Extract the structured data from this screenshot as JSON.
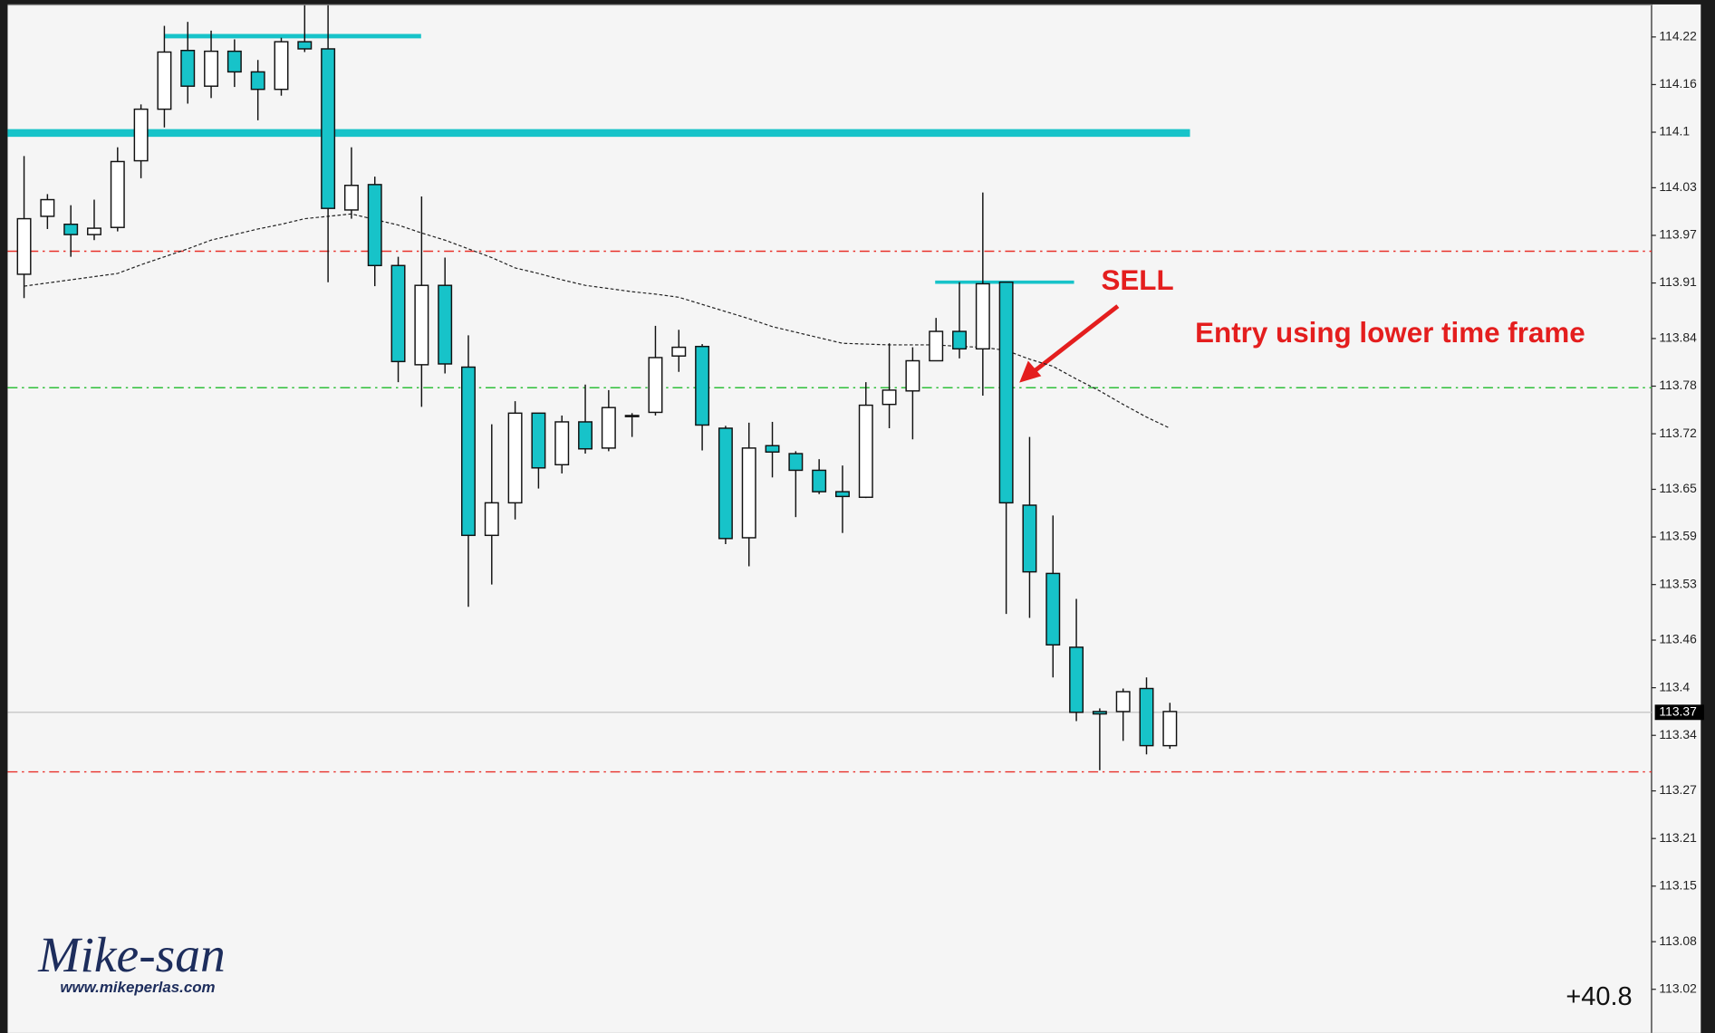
{
  "chart_data": {
    "type": "candlestick",
    "up_color": "#ffffff",
    "down_color": "#17c3c9",
    "ma_color": "#222222",
    "ylim": [
      112.965,
      114.261
    ],
    "yticks": [
      114.22,
      114.16,
      114.1,
      114.03,
      113.97,
      113.91,
      113.84,
      113.78,
      113.72,
      113.65,
      113.59,
      113.53,
      113.46,
      113.4,
      113.34,
      113.27,
      113.21,
      113.15,
      113.08,
      113.02
    ],
    "open": [
      113.921,
      113.994,
      113.984,
      113.971,
      113.98,
      114.064,
      114.129,
      114.203,
      114.158,
      114.202,
      114.176,
      114.154,
      114.214,
      114.205,
      114.002,
      114.034,
      113.932,
      113.807,
      113.907,
      113.804,
      113.592,
      113.633,
      113.746,
      113.681,
      113.735,
      113.702,
      113.742,
      113.747,
      113.818,
      113.83,
      113.727,
      113.589,
      113.705,
      113.695,
      113.674,
      113.647,
      113.64,
      113.757,
      113.774,
      113.812,
      113.849,
      113.827,
      113.911,
      113.63,
      113.544,
      113.451,
      113.37,
      113.37,
      113.399,
      113.327
    ],
    "high": [
      114.07,
      114.022,
      114.008,
      114.015,
      114.081,
      114.135,
      114.234,
      114.239,
      114.228,
      114.217,
      114.191,
      114.219,
      114.26,
      114.26,
      114.081,
      114.044,
      113.943,
      114.019,
      113.942,
      113.844,
      113.732,
      113.761,
      113.746,
      113.743,
      113.782,
      113.775,
      113.746,
      113.856,
      113.851,
      113.833,
      113.73,
      113.734,
      113.735,
      113.698,
      113.688,
      113.68,
      113.785,
      113.834,
      113.829,
      113.866,
      113.911,
      114.024,
      113.911,
      113.716,
      113.617,
      113.512,
      113.374,
      113.399,
      113.413,
      113.381
    ],
    "low": [
      113.891,
      113.978,
      113.943,
      113.964,
      113.975,
      114.042,
      114.106,
      114.136,
      114.143,
      114.157,
      114.115,
      114.146,
      114.201,
      113.911,
      113.991,
      113.906,
      113.785,
      113.754,
      113.796,
      113.502,
      113.53,
      113.612,
      113.651,
      113.67,
      113.695,
      113.698,
      113.716,
      113.743,
      113.798,
      113.699,
      113.581,
      113.553,
      113.665,
      113.615,
      113.644,
      113.595,
      113.639,
      113.727,
      113.713,
      113.812,
      113.815,
      113.768,
      113.493,
      113.488,
      113.413,
      113.358,
      113.296,
      113.333,
      113.316,
      113.323
    ],
    "close": [
      113.991,
      114.015,
      113.971,
      113.979,
      114.063,
      114.129,
      114.201,
      114.158,
      114.202,
      114.176,
      114.154,
      114.214,
      114.205,
      114.004,
      114.033,
      113.932,
      113.811,
      113.907,
      113.808,
      113.592,
      113.633,
      113.746,
      113.677,
      113.735,
      113.701,
      113.753,
      113.743,
      113.816,
      113.829,
      113.731,
      113.588,
      113.702,
      113.697,
      113.674,
      113.647,
      113.641,
      113.756,
      113.775,
      113.812,
      113.849,
      113.827,
      113.909,
      113.633,
      113.546,
      113.454,
      113.369,
      113.367,
      113.395,
      113.327,
      113.37
    ],
    "moving_average": [
      113.906,
      113.91,
      113.914,
      113.918,
      113.922,
      113.933,
      113.943,
      113.953,
      113.964,
      113.971,
      113.978,
      113.984,
      113.991,
      113.994,
      113.997,
      113.99,
      113.983,
      113.973,
      113.964,
      113.953,
      113.942,
      113.929,
      113.922,
      113.914,
      113.907,
      113.903,
      113.899,
      113.896,
      113.892,
      113.883,
      113.874,
      113.865,
      113.855,
      113.848,
      113.841,
      113.834,
      113.833,
      113.832,
      113.832,
      113.832,
      113.83,
      113.829,
      113.825,
      113.814,
      113.805,
      113.789,
      113.774,
      113.757,
      113.741,
      113.727
    ],
    "levels": [
      {
        "value": 114.099,
        "color": "#17c3c9",
        "style": "solid"
      },
      {
        "value": 114.221,
        "color": "#17c3c9",
        "style": "solid"
      },
      {
        "value": 113.911,
        "color": "#17c3c9",
        "style": "solid"
      },
      {
        "value": 113.95,
        "color": "#e8302a",
        "style": "dashdot"
      },
      {
        "value": 113.778,
        "color": "#2fbf3a",
        "style": "dashdot"
      },
      {
        "value": 113.294,
        "color": "#e8302a",
        "style": "dashdot"
      }
    ],
    "current_price": {
      "value": 113.369,
      "label": "113.37"
    },
    "annotations": [
      "SELL",
      "Entry using lower time frame"
    ],
    "counter": "+40.8",
    "watermark": {
      "name": "Mike-san",
      "url": "www.mikeperlas.com"
    }
  }
}
